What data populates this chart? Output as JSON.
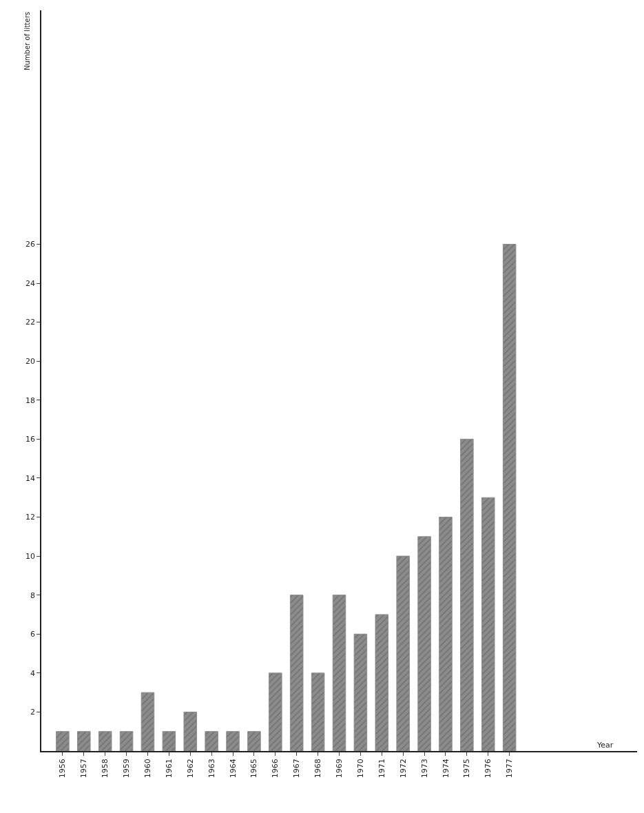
{
  "chart_data": {
    "type": "bar",
    "annotations": [
      "Year"
    ],
    "ylabel": "Number of litters",
    "categories": [
      "1956",
      "1957",
      "1958",
      "1959",
      "1960",
      "1961",
      "1962",
      "1963",
      "1964",
      "1965",
      "1966",
      "1967",
      "1968",
      "1969",
      "1970",
      "1971",
      "1972",
      "1973",
      "1974",
      "1975",
      "1976",
      "1977"
    ],
    "values": [
      1,
      1,
      1,
      1,
      3,
      1,
      2,
      1,
      1,
      1,
      4,
      8,
      4,
      8,
      6,
      7,
      10,
      11,
      12,
      16,
      13,
      26
    ],
    "color": "#8c8c8c",
    "ylim": [
      0,
      38
    ],
    "yticks": [
      2,
      4,
      6,
      8,
      10,
      12,
      14,
      16,
      18,
      20,
      22,
      24,
      26
    ],
    "legend": false
  }
}
